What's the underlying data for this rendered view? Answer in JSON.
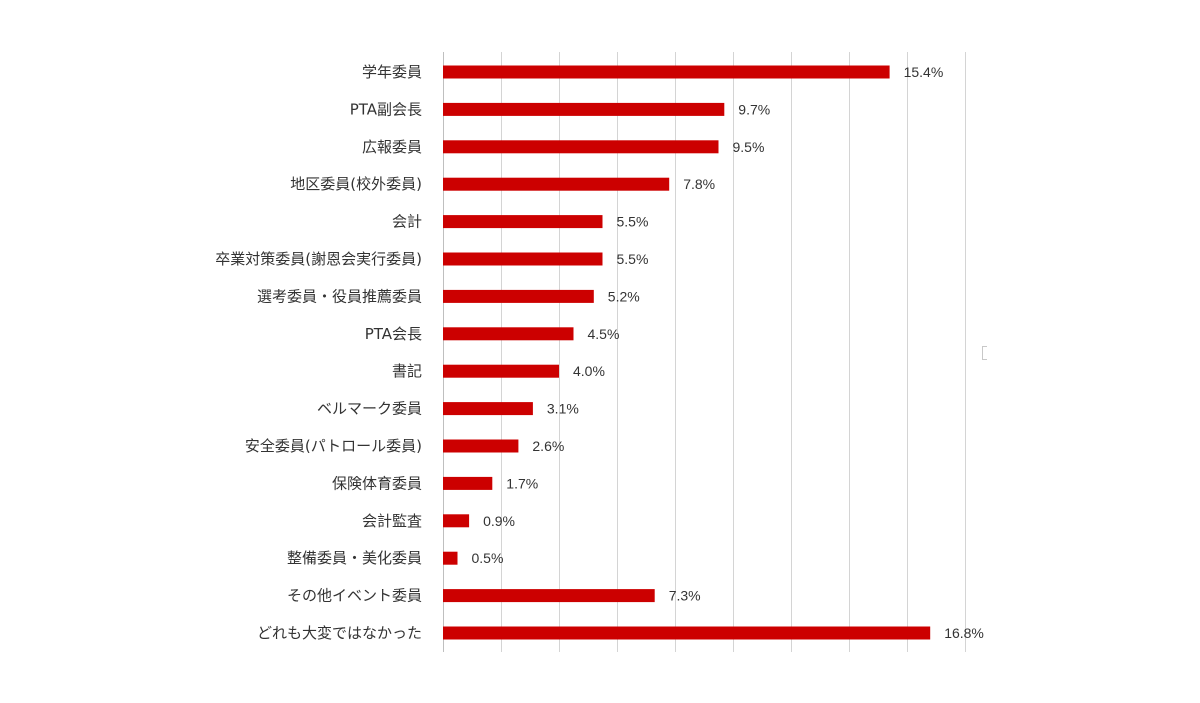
{
  "chart_data": {
    "type": "bar",
    "orientation": "horizontal",
    "categories": [
      "学年委員",
      "PTA副会長",
      "広報委員",
      "地区委員(校外委員)",
      "会計",
      "卒業対策委員(謝恩会実行委員)",
      "選考委員・役員推薦委員",
      "PTA会長",
      "書記",
      "ベルマーク委員",
      "安全委員(パトロール委員)",
      "保険体育委員",
      "会計監査",
      "整備委員・美化委員",
      "その他イベント委員",
      "どれも大変ではなかった"
    ],
    "values": [
      15.4,
      9.7,
      9.5,
      7.8,
      5.5,
      5.5,
      5.2,
      4.5,
      4.0,
      3.1,
      2.6,
      1.7,
      0.9,
      0.5,
      7.3,
      16.8
    ],
    "value_labels": [
      "15.4%",
      "9.7%",
      "9.5%",
      "7.8%",
      "5.5%",
      "5.5%",
      "5.2%",
      "4.5%",
      "4.0%",
      "3.1%",
      "2.6%",
      "1.7%",
      "0.9%",
      "0.5%",
      "7.3%",
      "16.8%"
    ],
    "xlim": [
      0,
      18
    ],
    "grid_step": 2,
    "grid": true,
    "bar_color": "#cc0000",
    "grid_color": "#d4d4d4",
    "legend": "none"
  }
}
